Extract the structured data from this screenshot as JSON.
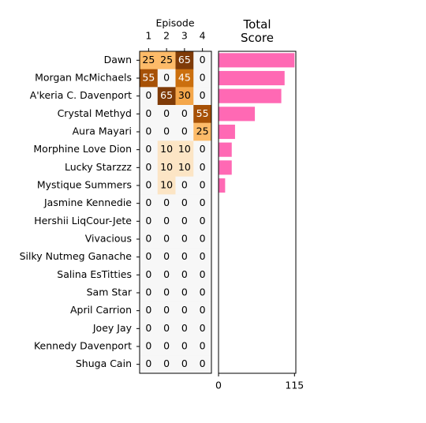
{
  "chart_data": [
    {
      "type": "heatmap",
      "title": "Episode",
      "x_categories": [
        "1",
        "2",
        "3",
        "4"
      ],
      "categories": [
        "Dawn",
        "Morgan McMichaels",
        "A'keria C. Davenport",
        "Crystal Methyd",
        "Aura Mayari",
        "Morphine Love Dion",
        "Lucky Starzzz",
        "Mystique Summers",
        "Jasmine Kennedie",
        "Hershii LiqCour-Jete",
        "Vivacious",
        "Silky Nutmeg Ganache",
        "Salina EsTitties",
        "Sam Star",
        "April Carrion",
        "Joey Jay",
        "Kennedy Davenport",
        "Shuga Cain"
      ],
      "values": [
        [
          25,
          25,
          65,
          0
        ],
        [
          55,
          0,
          45,
          0
        ],
        [
          0,
          65,
          30,
          0
        ],
        [
          0,
          0,
          0,
          55
        ],
        [
          0,
          0,
          0,
          25
        ],
        [
          0,
          10,
          10,
          0
        ],
        [
          0,
          10,
          10,
          0
        ],
        [
          0,
          10,
          0,
          0
        ],
        [
          0,
          0,
          0,
          0
        ],
        [
          0,
          0,
          0,
          0
        ],
        [
          0,
          0,
          0,
          0
        ],
        [
          0,
          0,
          0,
          0
        ],
        [
          0,
          0,
          0,
          0
        ],
        [
          0,
          0,
          0,
          0
        ],
        [
          0,
          0,
          0,
          0
        ],
        [
          0,
          0,
          0,
          0
        ],
        [
          0,
          0,
          0,
          0
        ],
        [
          0,
          0,
          0,
          0
        ]
      ],
      "colormap": [
        "#f7f7f7",
        "#fee0b6",
        "#fdb863",
        "#e08214",
        "#b35806",
        "#7f3b08"
      ],
      "vlim": [
        0,
        65
      ]
    },
    {
      "type": "bar",
      "orientation": "horizontal",
      "title": "Total\nScore",
      "values": [
        115,
        100,
        95,
        55,
        25,
        20,
        20,
        10,
        0,
        0,
        0,
        0,
        0,
        0,
        0,
        0,
        0,
        0
      ],
      "color": "#ff69b4",
      "xlim": [
        0,
        117
      ],
      "xticks": [
        0,
        115
      ]
    }
  ]
}
